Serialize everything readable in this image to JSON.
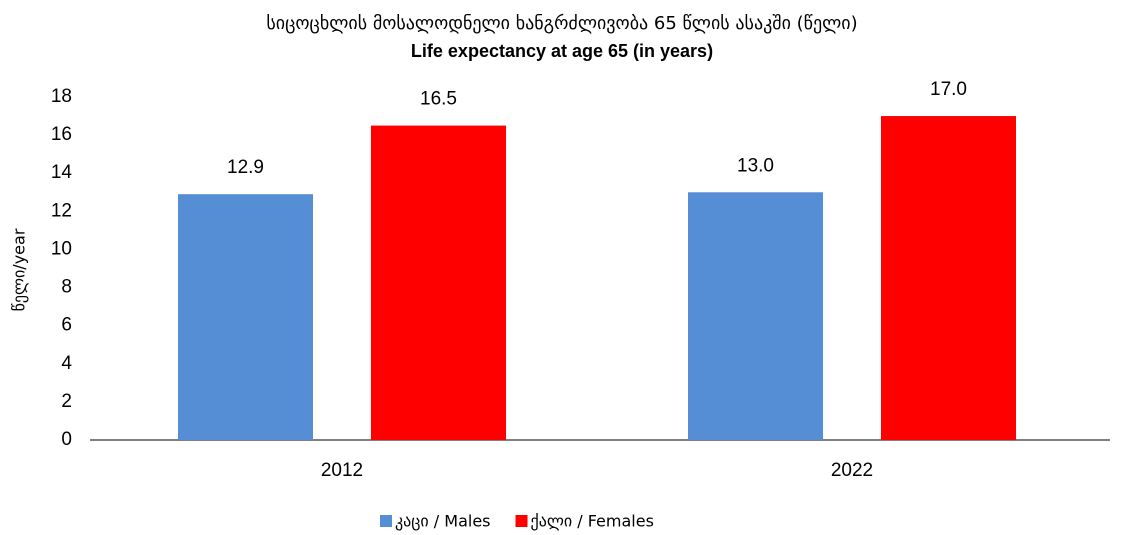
{
  "chart_data": {
    "type": "bar",
    "title": "სიცოცხლის მოსალოდნელი ხანგრძლივობა 65 წლის ასაკში (წელი)",
    "subtitle": "Life expectancy at age 65 (in years)",
    "y_label": "წელი/year",
    "categories": [
      "2012",
      "2022"
    ],
    "series": [
      {
        "name": "კაცი / Males",
        "color": "#558ed5",
        "values": [
          12.9,
          13
        ],
        "value_labels": [
          "12.9",
          "13.0"
        ]
      },
      {
        "name": "ქალი / Females",
        "color": "#ff0000",
        "values": [
          16.5,
          17
        ],
        "value_labels": [
          "16.5",
          "17.0"
        ]
      }
    ],
    "ylim": [
      0,
      18
    ],
    "yticks": [
      0,
      2,
      4,
      6,
      8,
      10,
      12,
      14,
      16,
      18
    ],
    "grid": false,
    "legend": "bottom"
  }
}
